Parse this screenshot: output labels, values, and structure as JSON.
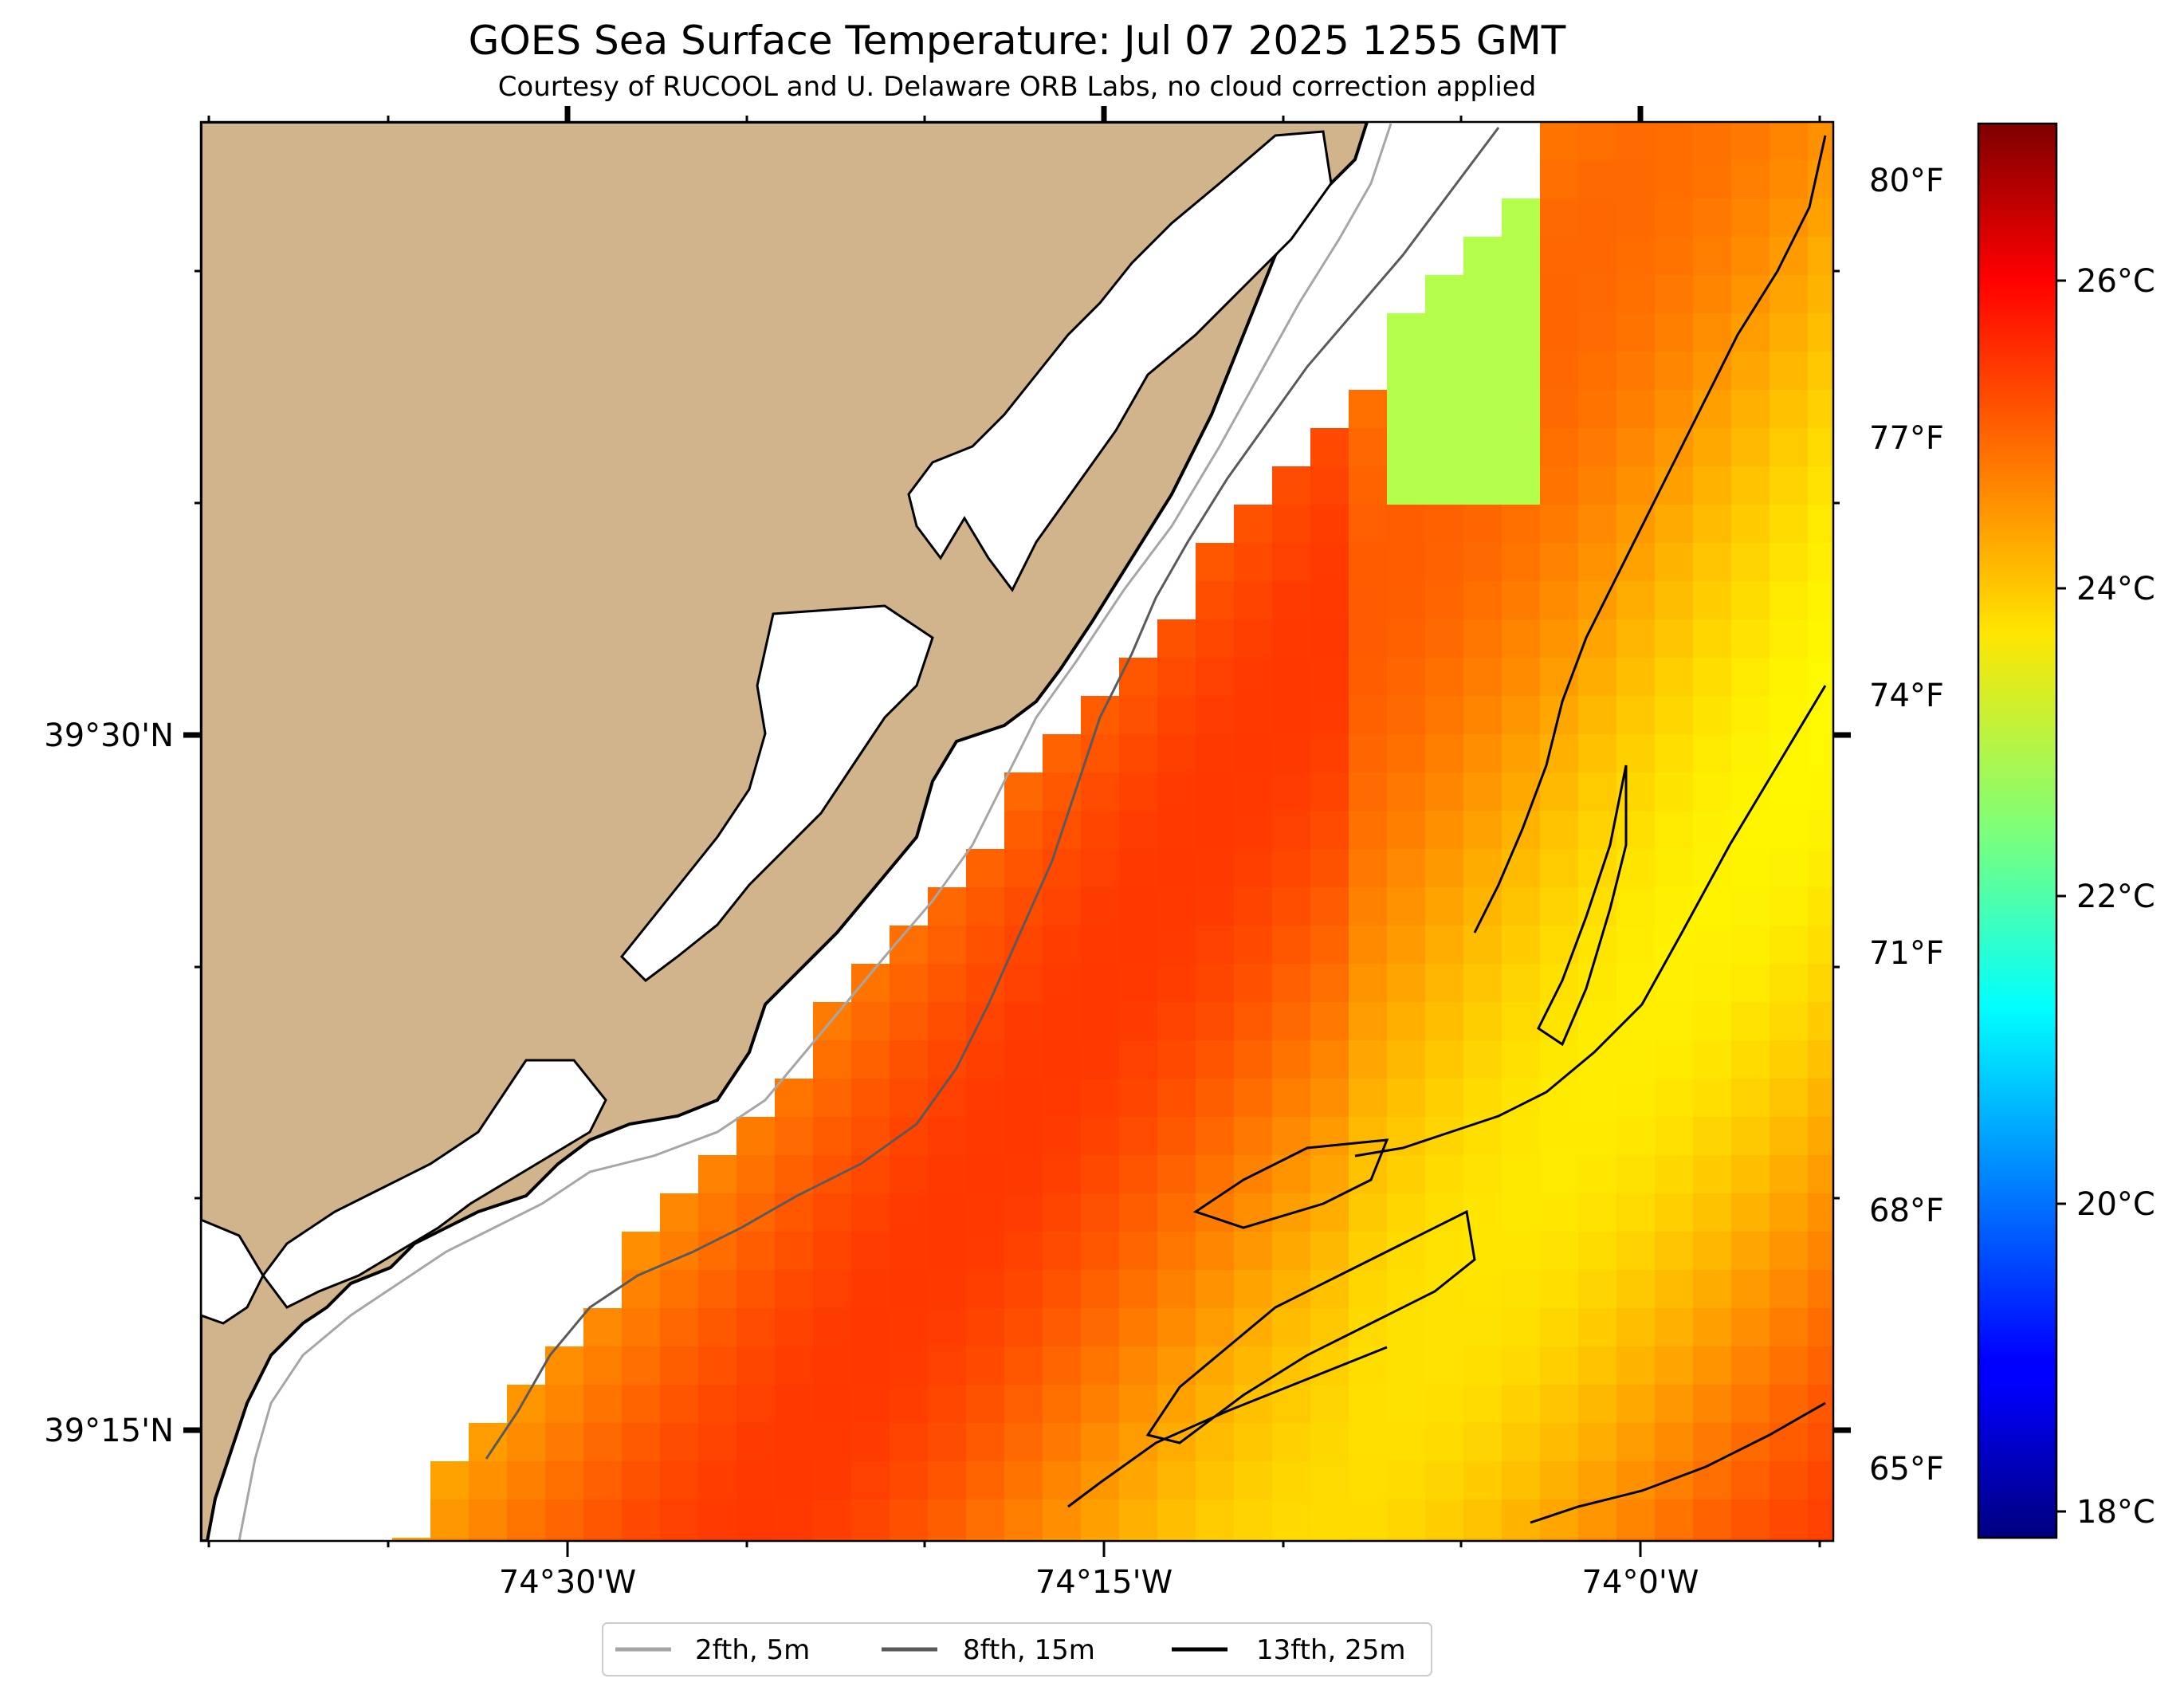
{
  "header": {
    "title": "GOES Sea Surface Temperature: Jul 07 2025 1255 GMT",
    "subtitle": "Courtesy of RUCOOL and U. Delaware ORB Labs, no cloud correction applied"
  },
  "map": {
    "lon_labels": [
      "74°30'W",
      "74°15'W",
      "74°0'W"
    ],
    "lat_labels": [
      "39°30'N",
      "39°15'N"
    ]
  },
  "colorbar": {
    "celsius_labels": [
      "26°C",
      "24°C",
      "22°C",
      "20°C",
      "18°C"
    ],
    "fahrenheit_labels": [
      "80°F",
      "77°F",
      "74°F",
      "71°F",
      "68°F",
      "65°F"
    ],
    "range_c": [
      17.6,
      26.8
    ],
    "colormap": "jet"
  },
  "legend": {
    "items": [
      {
        "label": "2fth, 5m",
        "color": "#a6a6a6"
      },
      {
        "label": "8fth, 15m",
        "color": "#5a5a5a"
      },
      {
        "label": "13fth, 25m",
        "color": "#000000"
      }
    ]
  },
  "colors": {
    "land": "#d2b48c",
    "no_data": "#ffffff"
  }
}
